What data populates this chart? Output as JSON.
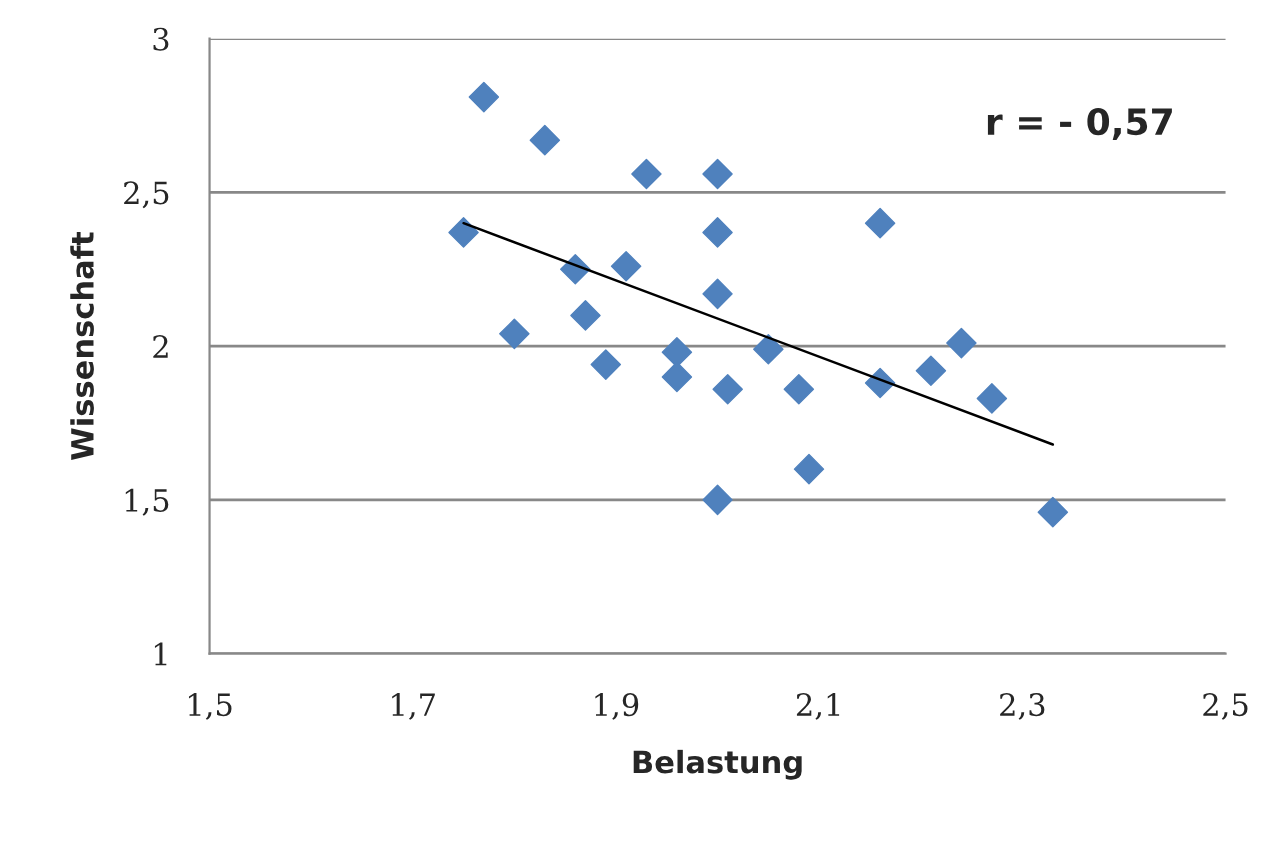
{
  "chart_data": {
    "type": "scatter",
    "xlabel": "Belastung",
    "ylabel": "Wissenschaft",
    "grid": "y",
    "xlim": [
      1.5,
      2.5
    ],
    "ylim": [
      1,
      3
    ],
    "xticks": [
      {
        "value": 1.5,
        "label": "1,5"
      },
      {
        "value": 1.7,
        "label": "1,7"
      },
      {
        "value": 1.9,
        "label": "1,9"
      },
      {
        "value": 2.1,
        "label": "2,1"
      },
      {
        "value": 2.3,
        "label": "2,3"
      },
      {
        "value": 2.5,
        "label": "2,5"
      }
    ],
    "yticks": [
      {
        "value": 1,
        "label": "1"
      },
      {
        "value": 1.5,
        "label": "1,5"
      },
      {
        "value": 2,
        "label": "2"
      },
      {
        "value": 2.5,
        "label": "2,5"
      },
      {
        "value": 3,
        "label": "3"
      }
    ],
    "series": [
      {
        "color": "#4f81bd",
        "marker": "diamond",
        "x": [
          1.77,
          1.83,
          1.93,
          2.0,
          1.75,
          2.0,
          2.16,
          1.86,
          1.91,
          2.0,
          1.87,
          1.8,
          1.89,
          1.96,
          1.96,
          2.05,
          2.01,
          2.08,
          2.16,
          2.21,
          2.24,
          2.27,
          2.09,
          2.0,
          2.33
        ],
        "values": [
          2.81,
          2.67,
          2.56,
          2.56,
          2.37,
          2.37,
          2.4,
          2.25,
          2.26,
          2.17,
          2.1,
          2.04,
          1.94,
          1.98,
          1.9,
          1.99,
          1.86,
          1.86,
          1.88,
          1.92,
          2.01,
          1.83,
          1.6,
          1.5,
          1.46
        ]
      },
      {
        "type": "line",
        "color": "#000000",
        "x": [
          1.75,
          2.33
        ],
        "values": [
          2.4,
          1.68
        ]
      }
    ],
    "annotations": [
      "r = - 0,57"
    ]
  }
}
